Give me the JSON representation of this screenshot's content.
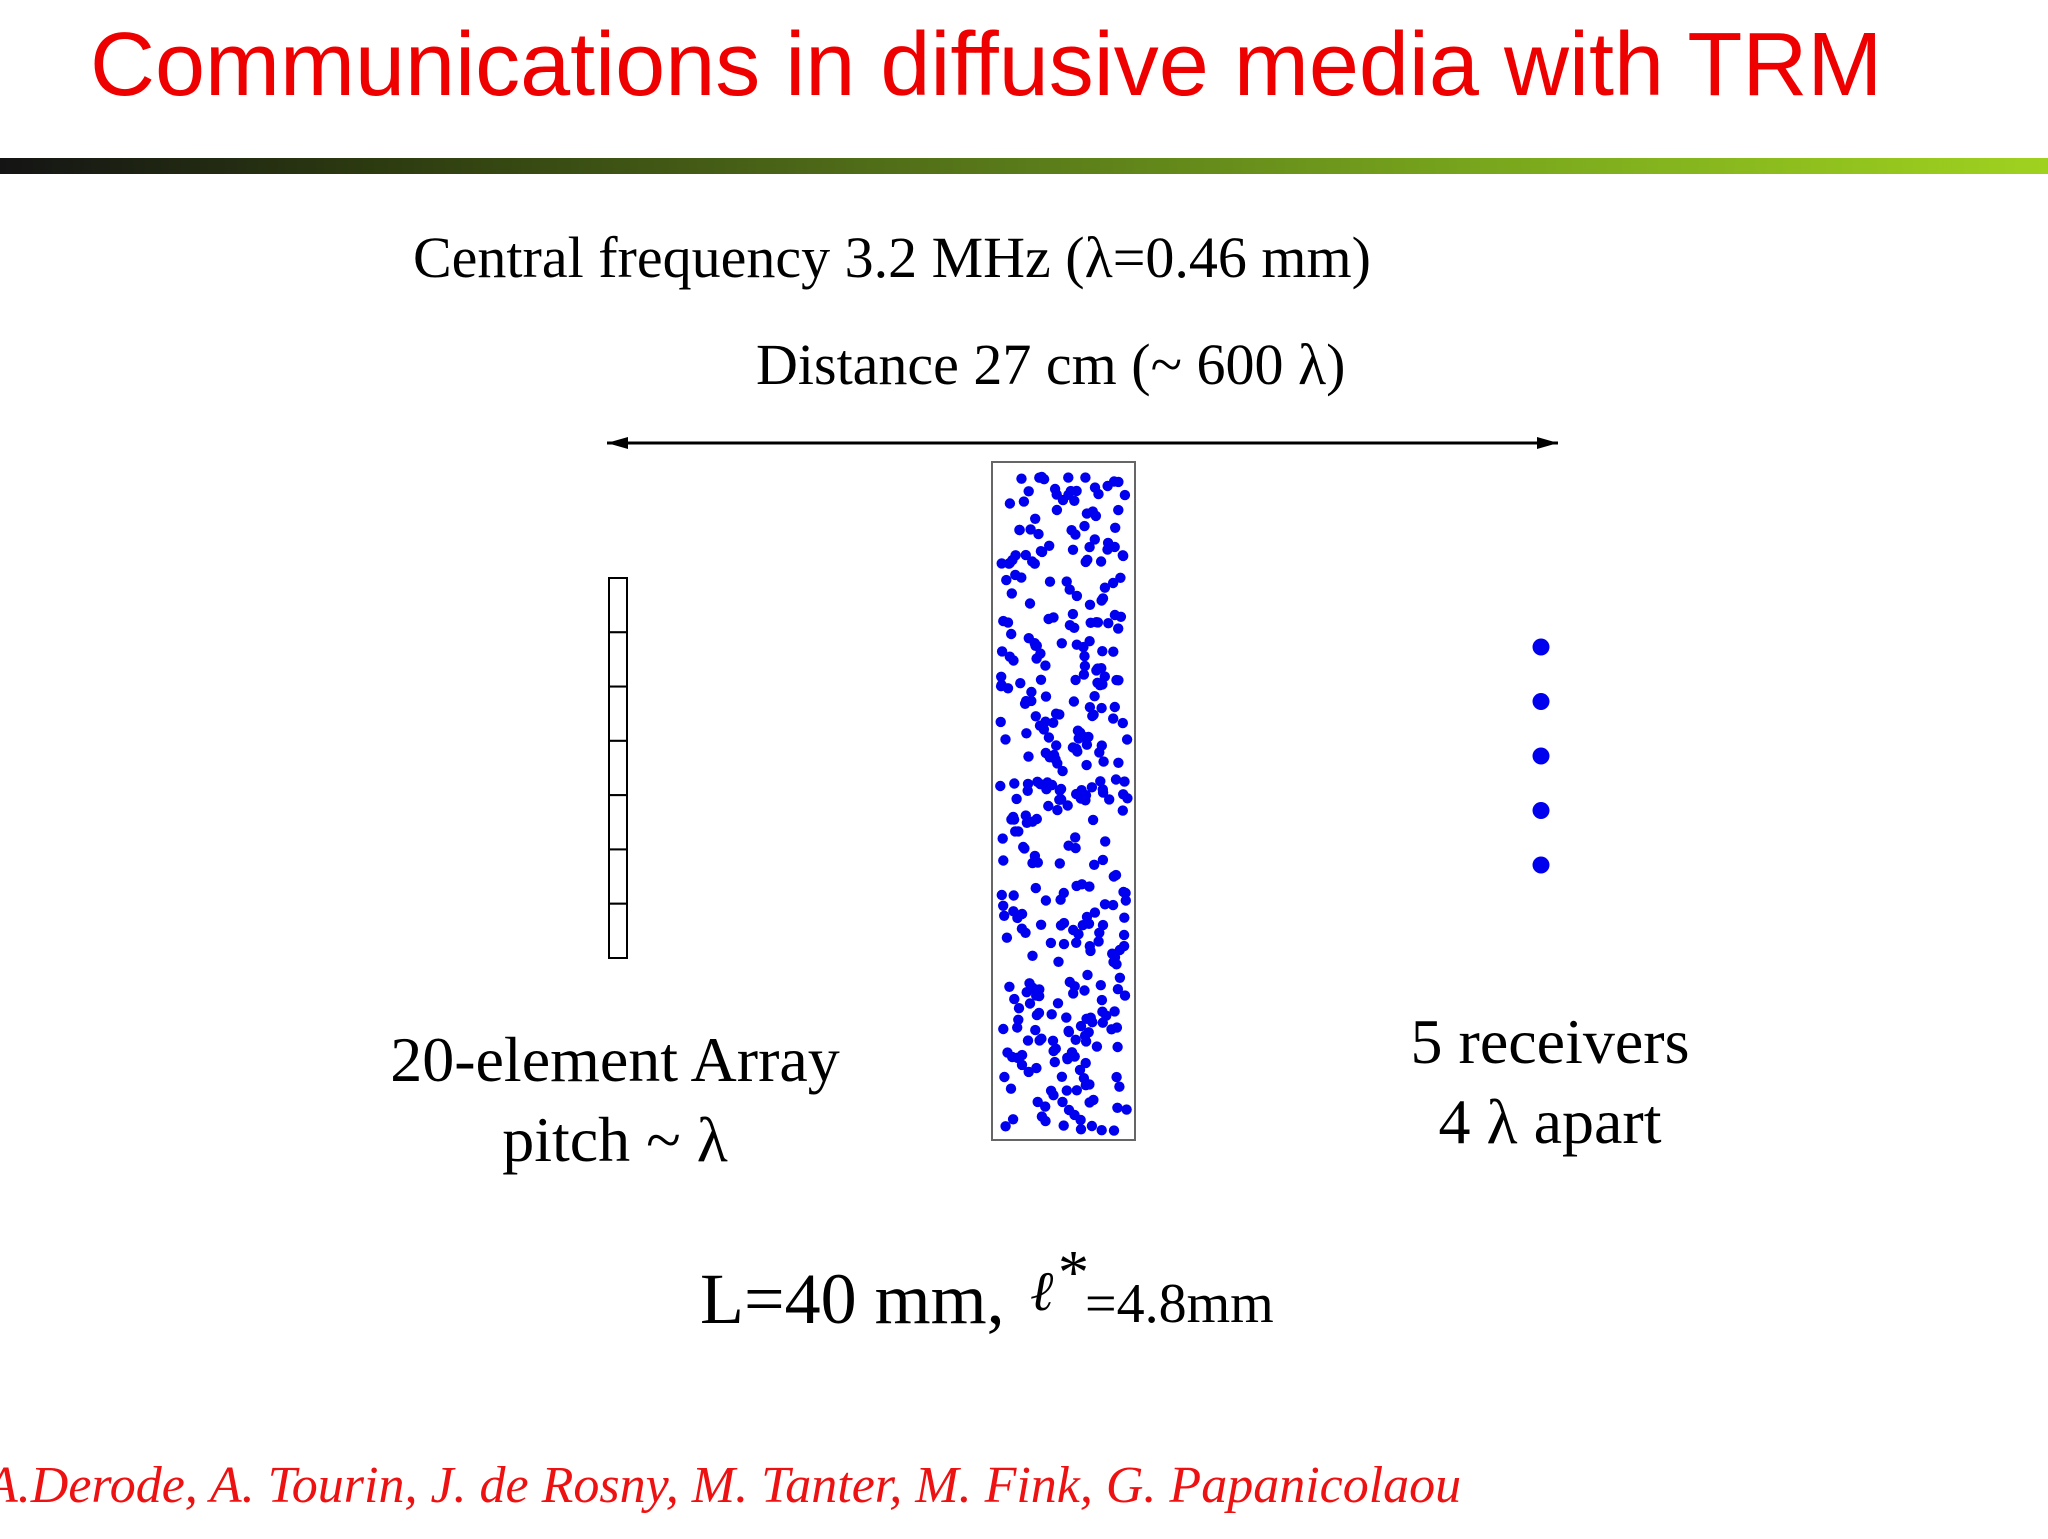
{
  "title": "Communications in diffusive media with TRM",
  "central_frequency": "Central frequency 3.2 MHz (λ=0.46 mm)",
  "distance": "Distance 27 cm (~ 600 λ)",
  "array_label": {
    "line1": "20-element Array",
    "line2": "pitch ~ λ"
  },
  "receivers_label": {
    "line1": "5 receivers",
    "line2": "4 λ apart"
  },
  "slab_params": {
    "L": "L=40 mm,",
    "ell_symbol": "ℓ",
    "star": "*",
    "ell_value": "=4.8mm"
  },
  "authors": "A.Derode, A. Tourin, J. de Rosny, M. Tanter, M. Fink, G. Papanicolaou",
  "colors": {
    "title": "#ee0000",
    "authors": "#ee1111",
    "scatterers": "#0000ee"
  },
  "array": {
    "visible_cells": 7
  },
  "receivers": {
    "count": 5
  },
  "scatterers": {
    "count": 380
  }
}
